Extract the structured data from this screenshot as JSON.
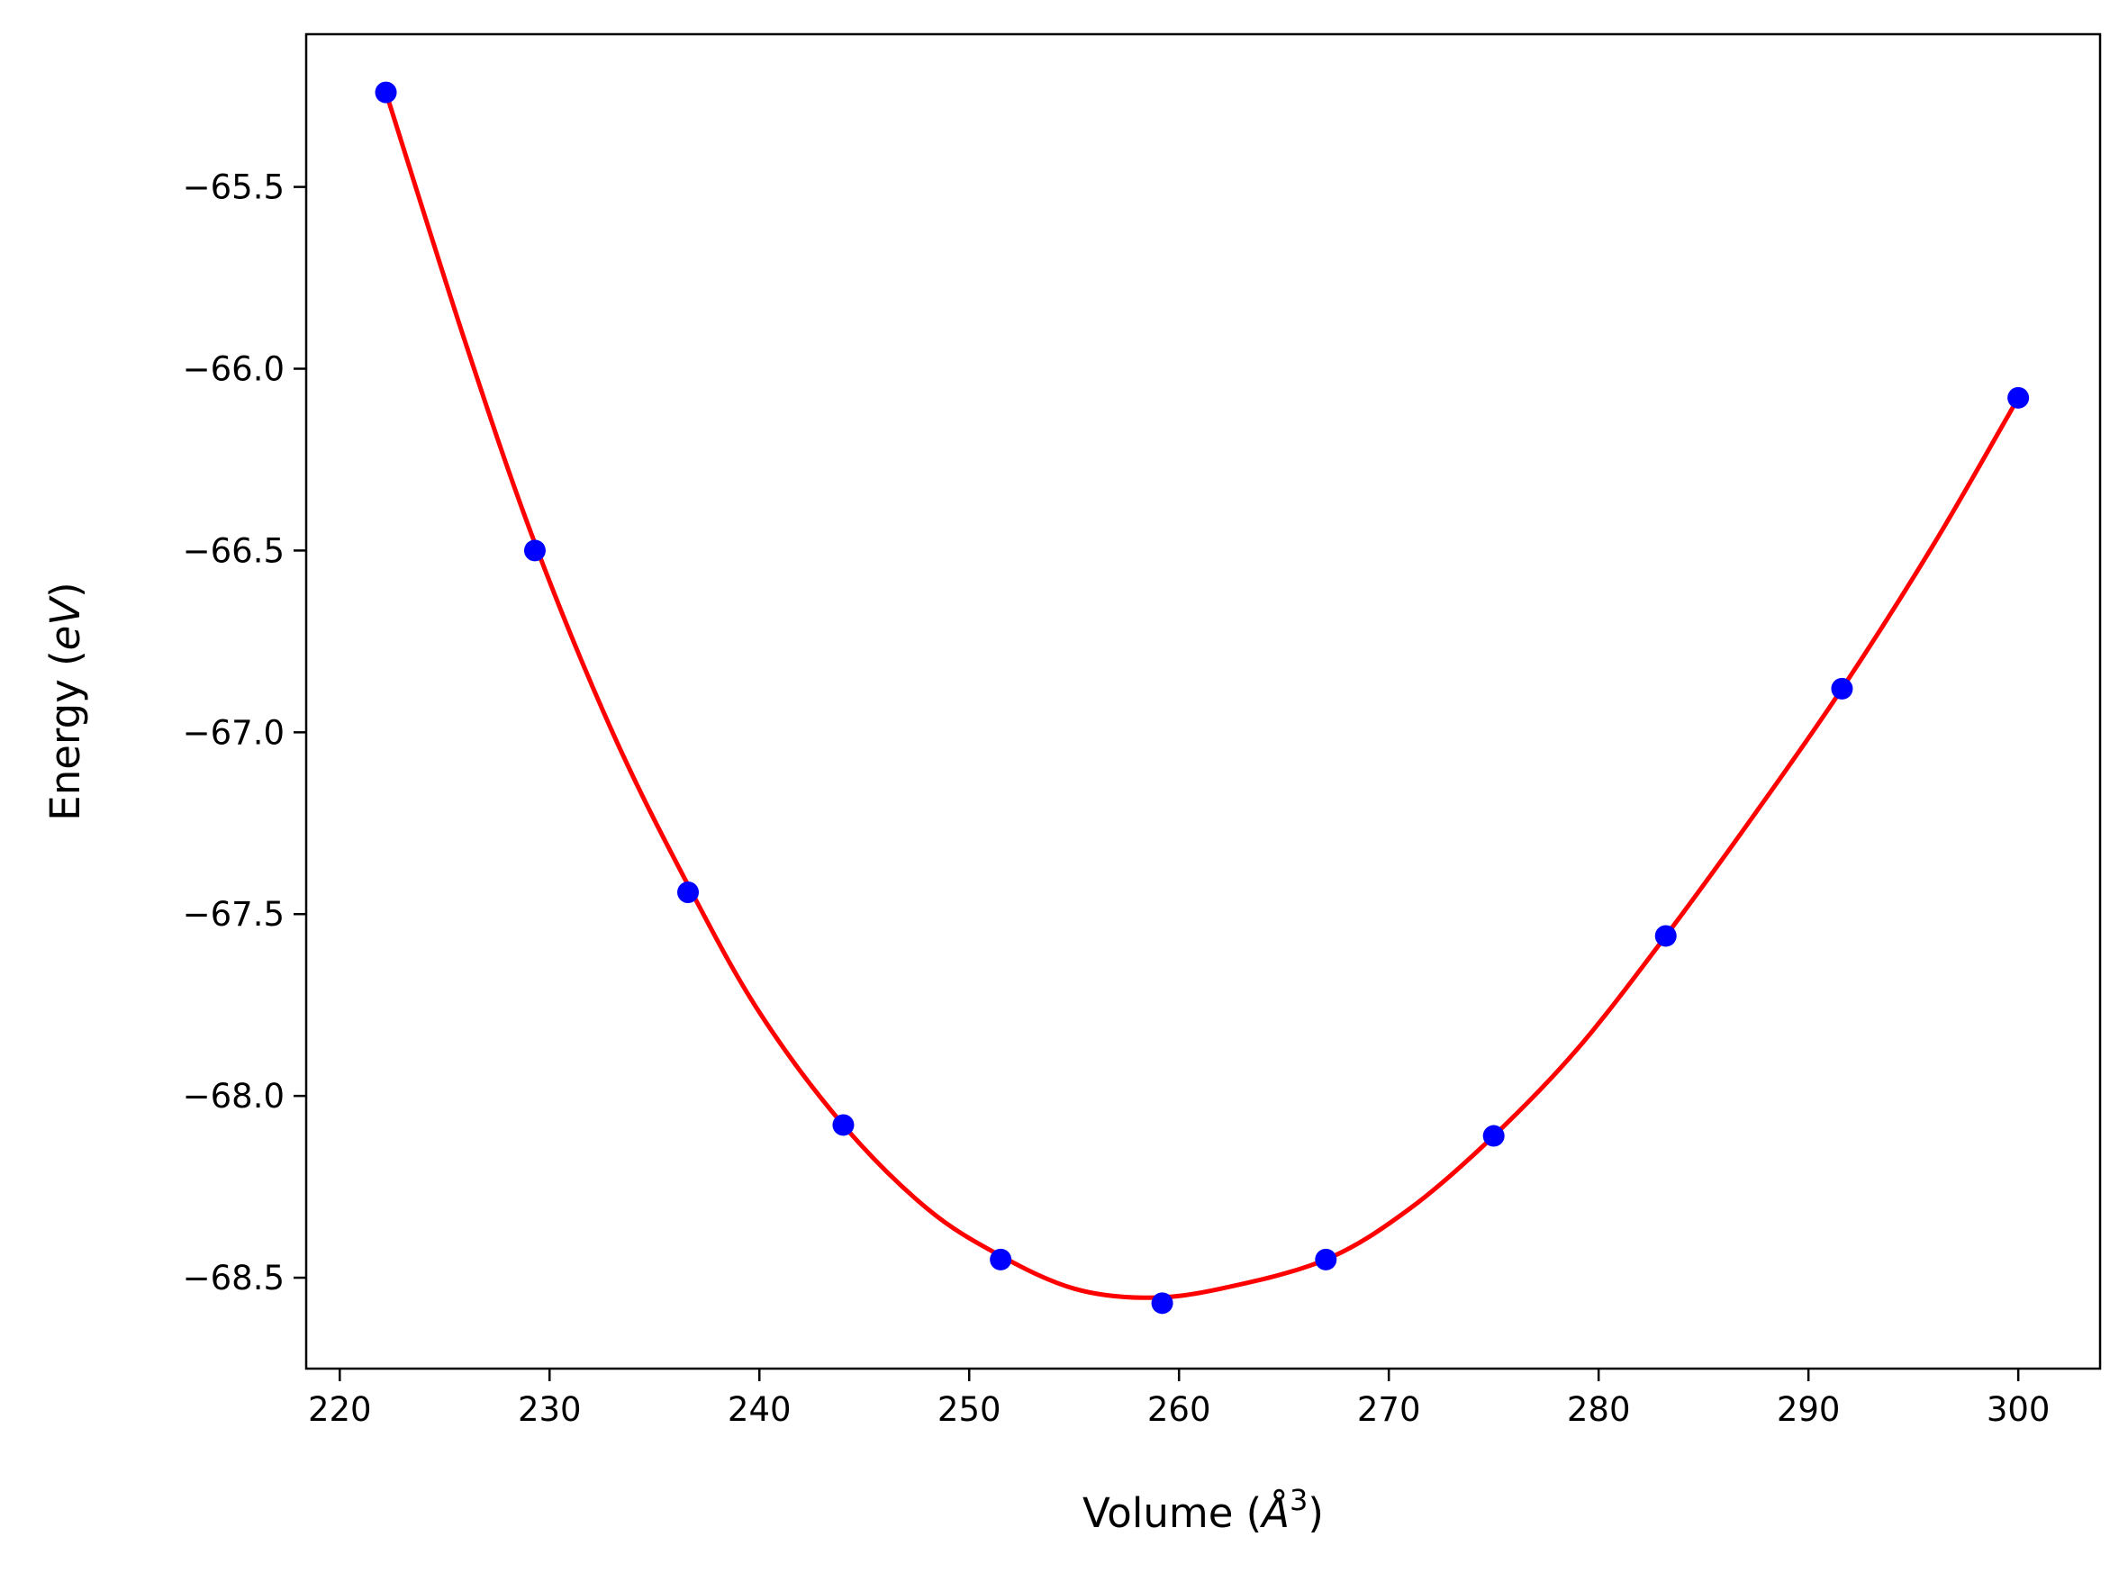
{
  "chart_data": {
    "type": "scatter",
    "title": "",
    "xlabel": "Volume (Å³)",
    "ylabel": "Energy (eV)",
    "xlabel_parts": {
      "pre": "Volume (",
      "unit": "Å",
      "sup": "3",
      "post": ")"
    },
    "ylabel_parts": {
      "pre": "Energy (",
      "unit": "eV",
      "post": ")"
    },
    "xlim": [
      218.4,
      303.9
    ],
    "ylim": [
      -68.75,
      -65.08
    ],
    "xticks": [
      220,
      230,
      240,
      250,
      260,
      270,
      280,
      290,
      300
    ],
    "xtick_labels": [
      "220",
      "230",
      "240",
      "250",
      "260",
      "270",
      "280",
      "290",
      "300"
    ],
    "yticks": [
      -68.5,
      -68.0,
      -67.5,
      -67.0,
      -66.5,
      -66.0,
      -65.5
    ],
    "ytick_labels": [
      "−68.5",
      "−68.0",
      "−67.5",
      "−67.0",
      "−66.5",
      "−66.0",
      "−65.5"
    ],
    "grid": false,
    "series": [
      {
        "kind": "points",
        "color": "#0000ff",
        "x": [
          222.2,
          229.3,
          236.6,
          244.0,
          251.5,
          259.2,
          267.0,
          275.0,
          283.2,
          291.6,
          300.0
        ],
        "y": [
          -65.24,
          -66.5,
          -67.44,
          -68.08,
          -68.45,
          -68.57,
          -68.45,
          -68.11,
          -67.56,
          -66.88,
          -66.08
        ]
      },
      {
        "kind": "fit-curve",
        "color": "#ff0000",
        "x": [
          222.2,
          226.0,
          229.3,
          233.0,
          236.6,
          240.0,
          244.0,
          248.0,
          251.5,
          255.0,
          258.5,
          262.0,
          267.0,
          271.0,
          275.0,
          279.0,
          283.2,
          287.5,
          291.6,
          296.0,
          300.0
        ],
        "y": [
          -65.24,
          -65.93,
          -66.48,
          -67.0,
          -67.42,
          -67.77,
          -68.08,
          -68.31,
          -68.44,
          -68.53,
          -68.555,
          -68.53,
          -68.45,
          -68.31,
          -68.11,
          -67.87,
          -67.56,
          -67.22,
          -66.88,
          -66.48,
          -66.08
        ]
      }
    ]
  }
}
